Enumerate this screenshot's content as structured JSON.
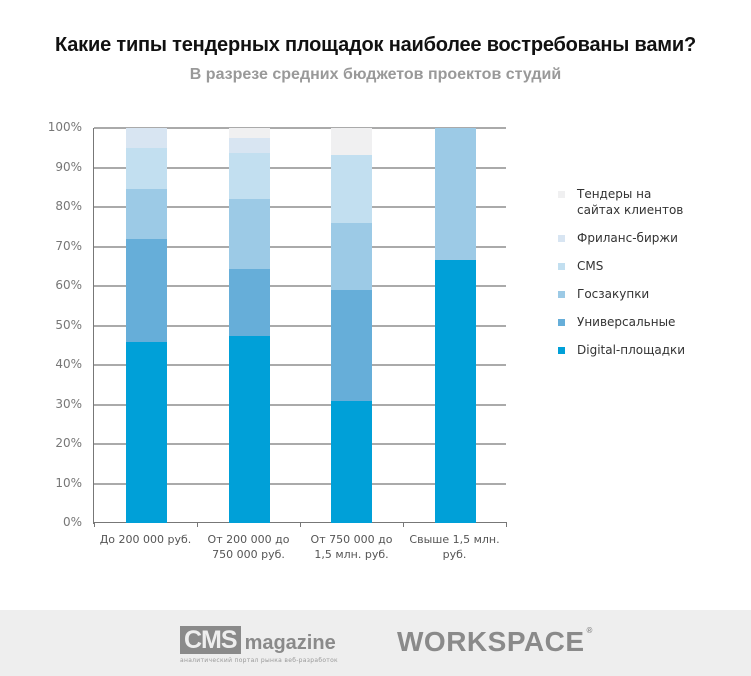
{
  "header": {
    "title": "Какие типы тендерных площадок наиболее востребованы вами?",
    "subtitle": "В разрезе средних бюджетов проектов студий"
  },
  "colors": {
    "tenders": "#f0f0f1",
    "freelance": "#d8e5f2",
    "cms": "#c2dff0",
    "goszakupki": "#9ccae6",
    "universal": "#66aed9",
    "digital": "#00a0d8"
  },
  "chart_data": {
    "type": "bar",
    "stacked": true,
    "percent": true,
    "title": "Какие типы тендерных площадок наиболее востребованы вами?",
    "subtitle": "В разрезе средних бюджетов проектов студий",
    "xlabel": "",
    "ylabel": "",
    "ylim": [
      0,
      100
    ],
    "yticks": [
      "0%",
      "10%",
      "20%",
      "30%",
      "40%",
      "50%",
      "60%",
      "70%",
      "80%",
      "90%",
      "100%"
    ],
    "grid": true,
    "legend_position": "right",
    "categories": [
      "До 200 000 руб.",
      "От 200 000 до 750 000 руб.",
      "От 750 000 до 1,5 млн. руб.",
      "Свыше 1,5 млн. руб."
    ],
    "series": [
      {
        "name": "Digital-площадки",
        "color": "#00a0d8",
        "values": [
          45.8,
          47.3,
          30.9,
          66.7
        ]
      },
      {
        "name": "Универсальные",
        "color": "#66aed9",
        "values": [
          26.2,
          17.0,
          28.1,
          0
        ]
      },
      {
        "name": "Госзакупки",
        "color": "#9ccae6",
        "values": [
          12.5,
          17.7,
          16.9,
          33.3
        ]
      },
      {
        "name": "CMS",
        "color": "#c2dff0",
        "values": [
          10.5,
          11.7,
          17.3,
          0
        ]
      },
      {
        "name": "Фриланс-биржи",
        "color": "#d8e5f2",
        "values": [
          5.0,
          3.8,
          0,
          0
        ]
      },
      {
        "name": "Тендеры на сайтах клиентов",
        "color": "#f0f0f1",
        "values": [
          0,
          2.5,
          6.8,
          0
        ]
      }
    ]
  },
  "xlabels": [
    {
      "line1": "До 200 000 руб.",
      "line2": ""
    },
    {
      "line1": "От 200 000 до",
      "line2": "750 000 руб."
    },
    {
      "line1": "От 750 000 до",
      "line2": "1,5 млн. руб."
    },
    {
      "line1": "Свыше 1,5 млн.",
      "line2": "руб."
    }
  ],
  "legend": [
    {
      "label": "Тендеры на сайтах клиентов",
      "color": "#f0f0f1"
    },
    {
      "label": "Фриланс-биржи",
      "color": "#d8e5f2"
    },
    {
      "label": "CMS",
      "color": "#c2dff0"
    },
    {
      "label": "Госзакупки",
      "color": "#9ccae6"
    },
    {
      "label": "Универсальные",
      "color": "#66aed9"
    },
    {
      "label": "Digital-площадки",
      "color": "#00a0d8"
    }
  ],
  "footer": {
    "cms_logo_box": "CMS",
    "cms_logo_word": "magazine",
    "cms_tagline": "аналитический портал рынка веб-разработок",
    "workspace_logo": "WORKSPACE",
    "workspace_reg": "®"
  }
}
